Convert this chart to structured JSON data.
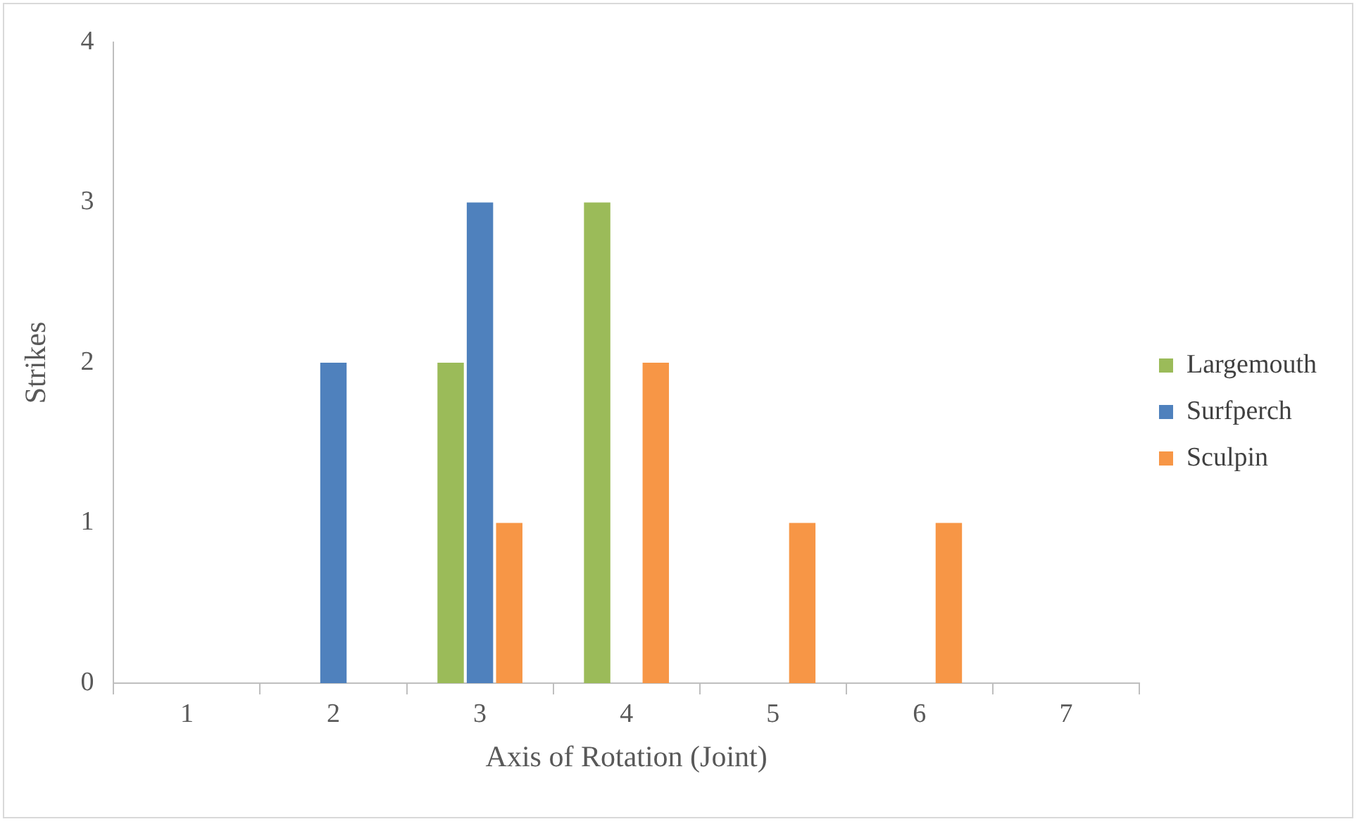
{
  "chart_data": {
    "type": "bar",
    "xlabel": "Axis of Rotation (Joint)",
    "ylabel": "Strikes",
    "categories": [
      "1",
      "2",
      "3",
      "4",
      "5",
      "6",
      "7"
    ],
    "series": [
      {
        "name": "Largemouth",
        "color": "#9bbb59",
        "values": [
          0,
          0,
          2,
          3,
          0,
          0,
          0
        ]
      },
      {
        "name": "Surfperch",
        "color": "#4f81bd",
        "values": [
          0,
          2,
          3,
          0,
          0,
          0,
          0
        ]
      },
      {
        "name": "Sculpin",
        "color": "#f79646",
        "values": [
          0,
          0,
          1,
          2,
          1,
          1,
          0
        ]
      }
    ],
    "ylim": [
      0,
      4
    ],
    "yticks": [
      0,
      1,
      2,
      3,
      4
    ],
    "grid": false,
    "legend": "right"
  }
}
